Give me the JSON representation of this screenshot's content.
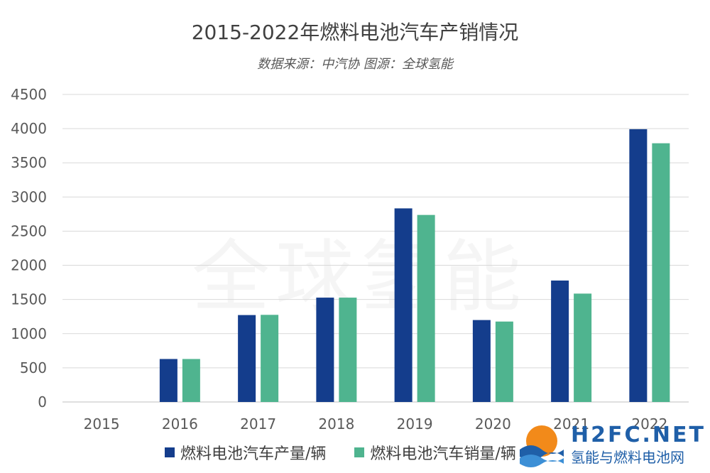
{
  "chart_data": {
    "type": "bar",
    "title": "2015-2022年燃料电池汽车产销情况",
    "subtitle": "数据来源：中汽协 图源：全球氢能",
    "categories": [
      "2015",
      "2016",
      "2017",
      "2018",
      "2019",
      "2020",
      "2021",
      "2022"
    ],
    "series": [
      {
        "name": "燃料电池汽车产量/辆",
        "values": [
          0,
          629,
          1272,
          1527,
          2833,
          1199,
          1777,
          3992
        ],
        "color": "#143d8c"
      },
      {
        "name": "燃料电池汽车销量/辆",
        "values": [
          0,
          629,
          1275,
          1527,
          2737,
          1177,
          1586,
          3786
        ],
        "color": "#4fb48f"
      }
    ],
    "ylim": [
      0,
      4500
    ],
    "yticks": [
      0,
      500,
      1000,
      1500,
      2000,
      2500,
      3000,
      3500,
      4000,
      4500
    ],
    "grid": true,
    "legend": "bottom"
  },
  "watermark": "全球氢能",
  "logo": {
    "main": "H2FC.NET",
    "sub": "氢能与燃料电池网"
  }
}
